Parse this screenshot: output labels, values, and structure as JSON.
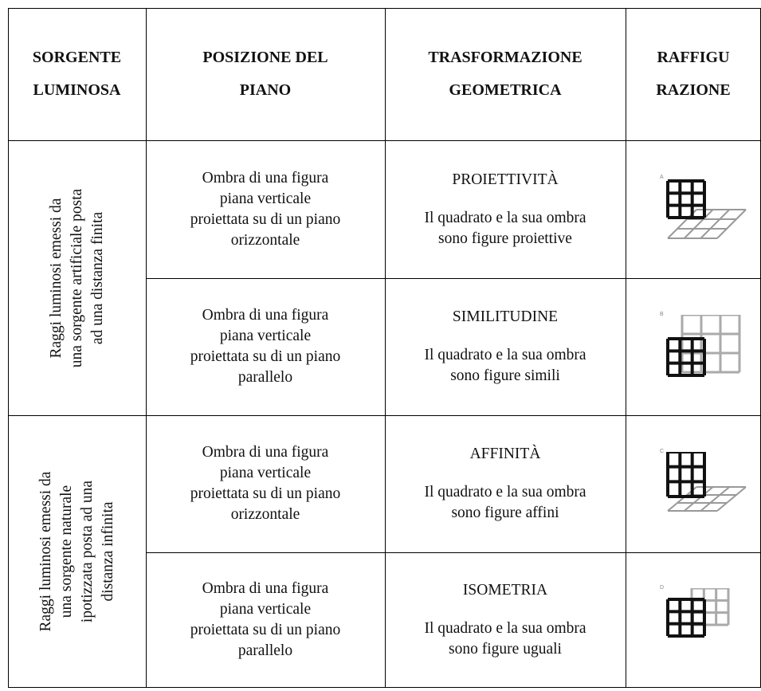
{
  "table": {
    "header": [
      "SORGENTE\nLUMINOSA",
      "POSIZIONE DEL\nPIANO",
      "TRASFORMAZIONE\nGEOMETRICA",
      "RAFFIGU\nRAZIONE"
    ],
    "groups": [
      {
        "source": "Raggi luminosi emessi da\nuna sorgente artificiale posta\nad una distanza finita",
        "rows": [
          {
            "position": "Ombra di una figura\npiana verticale\nproiettata su di un piano\norizzontale",
            "transformation": "PROIETTIVITÀ",
            "description": "Il quadrato e la sua ombra\nsono figure proiettive",
            "icon_label": "A"
          },
          {
            "position": "Ombra di una figura\npiana verticale\nproiettata su di un piano\nparallelo",
            "transformation": "SIMILITUDINE",
            "description": "Il quadrato e la sua ombra\nsono figure simili",
            "icon_label": "B"
          }
        ]
      },
      {
        "source": "Raggi luminosi emessi da\nuna sorgente naturale\nipotizzata posta ad una\ndistanza infinita",
        "rows": [
          {
            "position": "Ombra di una figura\npiana verticale\nproiettata su di un piano\norizzontale",
            "transformation": "AFFINITÀ",
            "description": "Il quadrato e la sua ombra\nsono figure affini",
            "icon_label": "C"
          },
          {
            "position": "Ombra di una figura\npiana verticale\nproiettata su di un piano\nparallelo",
            "transformation": "ISOMETRIA",
            "description": "Il quadrato e la sua ombra\nsono figure uguali",
            "icon_label": "D"
          }
        ]
      }
    ]
  }
}
